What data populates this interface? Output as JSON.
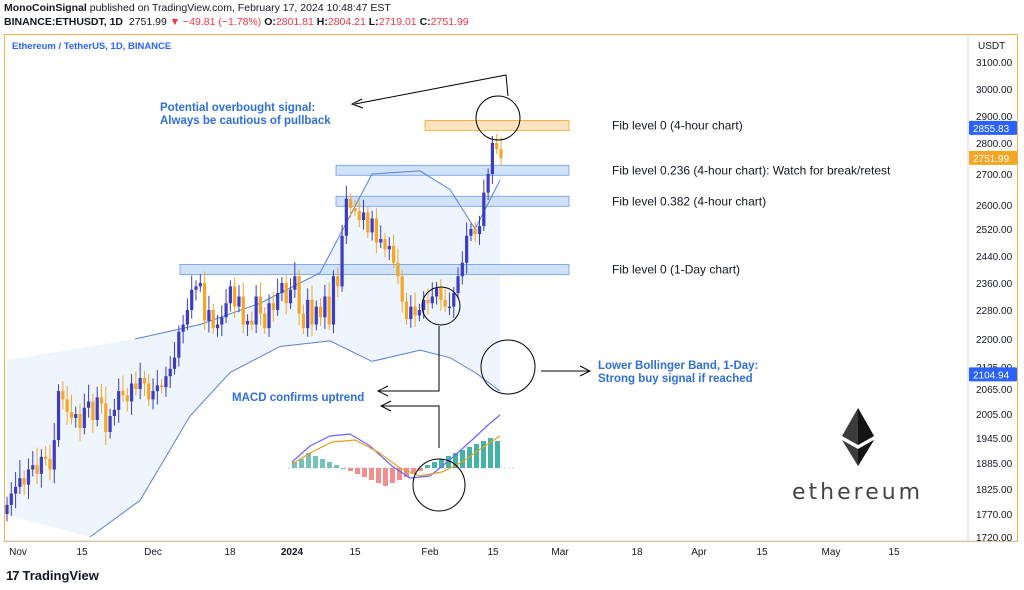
{
  "header": {
    "line1_author": "MonoCoinSignal",
    "line1_rest": " published on TradingView.com, February 17, 2024 10:48:47 EST",
    "symbol": "BINANCE:ETHUSDT, 1D",
    "last": "2751.99",
    "change": "▼ −49.81 (−1.78%)",
    "o_label": "O:",
    "o": "2801.81",
    "h_label": "H:",
    "h": "2804.21",
    "l_label": "L:",
    "l": "2719.01",
    "c_label": "C:",
    "c": "2751.99"
  },
  "chart_title": "Ethereum / TetherUS, 1D, BINANCE",
  "colors": {
    "up": "#3b3bc4",
    "down": "#f5a623",
    "band": "#5b7fd1",
    "accent": "#2962ff",
    "frame": "#f0b24a"
  },
  "chart_data": {
    "type": "candlestick",
    "currency": "USDT",
    "y_ticks": [
      3100,
      3000,
      2900,
      2800,
      2700,
      2600,
      2520,
      2440,
      2360,
      2280,
      2200,
      2125,
      2065,
      2005,
      1945,
      1885,
      1825,
      1770,
      1720
    ],
    "x_ticks": [
      "Nov",
      "15",
      "Dec",
      "18",
      "2024",
      "15",
      "Feb",
      "15",
      "Mar",
      "18",
      "Apr",
      "15",
      "May",
      "15"
    ],
    "price_labels": [
      {
        "value": 2855.83,
        "text": "2855.83",
        "style": "blue"
      },
      {
        "value": 2751.99,
        "text": "2751.99",
        "style": "orange"
      },
      {
        "value": 2104.94,
        "text": "2104.94",
        "style": "blue"
      }
    ],
    "closes": [
      1790,
      1815,
      1830,
      1850,
      1835,
      1870,
      1880,
      1860,
      1900,
      1895,
      1870,
      1940,
      2060,
      2040,
      2010,
      1995,
      2005,
      1970,
      2020,
      2035,
      1990,
      2045,
      2030,
      1960,
      2000,
      2015,
      2060,
      2050,
      2035,
      2080,
      2065,
      2095,
      2080,
      2040,
      2060,
      2075,
      2070,
      2100,
      2120,
      2150,
      2220,
      2240,
      2280,
      2340,
      2350,
      2360,
      2250,
      2280,
      2230,
      2240,
      2260,
      2300,
      2350,
      2290,
      2320,
      2240,
      2250,
      2240,
      2320,
      2270,
      2230,
      2300,
      2280,
      2330,
      2360,
      2300,
      2340,
      2380,
      2270,
      2230,
      2310,
      2240,
      2290,
      2260,
      2320,
      2240,
      2380,
      2350,
      2500,
      2620,
      2590,
      2580,
      2550,
      2575,
      2510,
      2555,
      2480,
      2490,
      2460,
      2470,
      2420,
      2380,
      2305,
      2255,
      2290,
      2265,
      2280,
      2310,
      2300,
      2320,
      2345,
      2310,
      2290,
      2290,
      2330,
      2380,
      2420,
      2500,
      2520,
      2505,
      2530,
      2640,
      2700,
      2800,
      2780,
      2752
    ],
    "upper_band": [
      [
        135,
        2200
      ],
      [
        200,
        2240
      ],
      [
        260,
        2300
      ],
      [
        320,
        2390
      ],
      [
        372,
        2700
      ],
      [
        420,
        2710
      ],
      [
        450,
        2650
      ],
      [
        475,
        2520
      ],
      [
        500,
        2680
      ]
    ],
    "lower_band": [
      [
        90,
        1720
      ],
      [
        140,
        1800
      ],
      [
        190,
        2000
      ],
      [
        230,
        2110
      ],
      [
        280,
        2180
      ],
      [
        330,
        2195
      ],
      [
        372,
        2140
      ],
      [
        420,
        2170
      ],
      [
        450,
        2150
      ],
      [
        475,
        2110
      ],
      [
        500,
        2060
      ]
    ],
    "fib_levels": [
      {
        "price": 2865,
        "label": "Fib level 0 (4-hour chart)",
        "style": "orange"
      },
      {
        "price": 2712,
        "label": "Fib level 0.236 (4-hour chart): Watch for break/retest",
        "style": "blue"
      },
      {
        "price": 2612,
        "label": "Fib level 0.382 (4-hour chart)",
        "style": "blue"
      },
      {
        "price": 2400,
        "label": "Fib level 0 (1-Day chart)",
        "style": "blue"
      }
    ],
    "macd_histogram": [
      2,
      3,
      5,
      4,
      3,
      2,
      1,
      0,
      -1,
      -2,
      -3,
      -4,
      -5,
      -6,
      -5,
      -4,
      -3,
      -2,
      -1,
      1,
      2,
      3,
      4,
      5,
      6,
      7,
      8,
      9,
      10,
      9
    ]
  },
  "annotations": {
    "overbought_line1": "Potential overbought signal:",
    "overbought_line2": "Always be cautious of pullback",
    "macd_note": "MACD confirms uptrend",
    "lower_bb_line1": "Lower Bollinger Band, 1-Day:",
    "lower_bb_line2": "Strong buy signal if reached"
  },
  "logo_text": "ethereum",
  "footer": {
    "brand": "TradingView",
    "mark": "17"
  }
}
